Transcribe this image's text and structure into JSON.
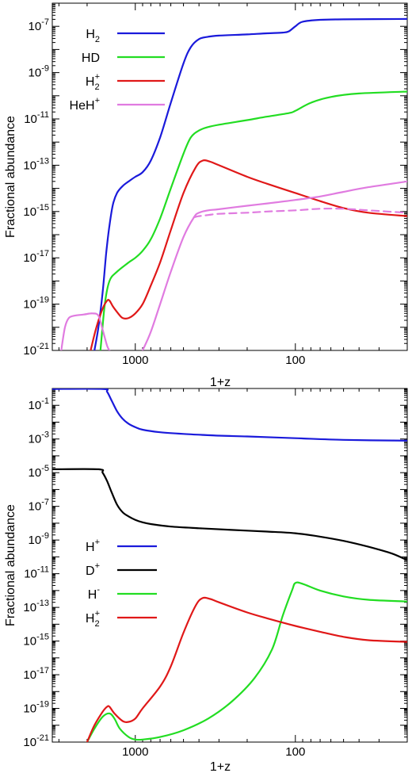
{
  "chart_data": [
    {
      "type": "line",
      "xlabel": "1+z",
      "ylabel": "Fractional abundance",
      "x_scale": "log",
      "x_reversed": true,
      "y_scale": "log",
      "xlim": [
        3300,
        20
      ],
      "ylim_exp": [
        -21,
        -6
      ],
      "x_ticks": [
        {
          "value": 1000,
          "label": "1000"
        },
        {
          "value": 100,
          "label": "100"
        }
      ],
      "y_ticks": [
        -7,
        -9,
        -11,
        -13,
        -15,
        -17,
        -19,
        -21
      ],
      "legend_position": "top-left",
      "series": [
        {
          "name": "H2",
          "label_main": "H",
          "label_sub": "2",
          "label_sup": "",
          "color": "#1a1adb",
          "dashed": false,
          "points": [
            [
              1800,
              -21
            ],
            [
              1700,
              -20
            ],
            [
              1600,
              -18.5
            ],
            [
              1520,
              -16.8
            ],
            [
              1450,
              -15.6
            ],
            [
              1380,
              -14.7
            ],
            [
              1300,
              -14.2
            ],
            [
              1200,
              -13.9
            ],
            [
              1100,
              -13.7
            ],
            [
              1000,
              -13.5
            ],
            [
              900,
              -13.3
            ],
            [
              800,
              -12.8
            ],
            [
              700,
              -11.8
            ],
            [
              600,
              -10.3
            ],
            [
              500,
              -8.6
            ],
            [
              450,
              -7.9
            ],
            [
              400,
              -7.55
            ],
            [
              350,
              -7.45
            ],
            [
              300,
              -7.4
            ],
            [
              200,
              -7.35
            ],
            [
              150,
              -7.3
            ],
            [
              120,
              -7.27
            ],
            [
              110,
              -7.22
            ],
            [
              100,
              -7.0
            ],
            [
              90,
              -6.8
            ],
            [
              70,
              -6.72
            ],
            [
              50,
              -6.7
            ],
            [
              20,
              -6.68
            ]
          ]
        },
        {
          "name": "HD",
          "label_main": "HD",
          "label_sub": "",
          "label_sup": "",
          "color": "#22dd22",
          "dashed": false,
          "points": [
            [
              1650,
              -21
            ],
            [
              1550,
              -19
            ],
            [
              1450,
              -18.0
            ],
            [
              1300,
              -17.6
            ],
            [
              1100,
              -17.2
            ],
            [
              1000,
              -17.0
            ],
            [
              900,
              -16.7
            ],
            [
              800,
              -16.2
            ],
            [
              700,
              -15.3
            ],
            [
              600,
              -14.0
            ],
            [
              500,
              -12.5
            ],
            [
              450,
              -11.8
            ],
            [
              400,
              -11.5
            ],
            [
              350,
              -11.35
            ],
            [
              300,
              -11.25
            ],
            [
              200,
              -11.05
            ],
            [
              150,
              -10.9
            ],
            [
              110,
              -10.75
            ],
            [
              100,
              -10.65
            ],
            [
              80,
              -10.3
            ],
            [
              60,
              -10.05
            ],
            [
              40,
              -9.9
            ],
            [
              20,
              -9.82
            ]
          ]
        },
        {
          "name": "H2+",
          "label_main": "H",
          "label_sub": "2",
          "label_sup": "+",
          "color": "#e01818",
          "dashed": false,
          "points": [
            [
              1900,
              -21
            ],
            [
              1750,
              -20
            ],
            [
              1600,
              -19.2
            ],
            [
              1500,
              -18.85
            ],
            [
              1450,
              -18.85
            ],
            [
              1380,
              -19.1
            ],
            [
              1280,
              -19.4
            ],
            [
              1200,
              -19.6
            ],
            [
              1100,
              -19.6
            ],
            [
              1000,
              -19.4
            ],
            [
              900,
              -19.0
            ],
            [
              800,
              -18.2
            ],
            [
              700,
              -17.2
            ],
            [
              600,
              -15.8
            ],
            [
              500,
              -14.2
            ],
            [
              420,
              -13.1
            ],
            [
              380,
              -12.8
            ],
            [
              340,
              -12.85
            ],
            [
              300,
              -13.0
            ],
            [
              200,
              -13.5
            ],
            [
              150,
              -13.8
            ],
            [
              100,
              -14.2
            ],
            [
              70,
              -14.55
            ],
            [
              50,
              -14.85
            ],
            [
              35,
              -15.05
            ],
            [
              20,
              -15.2
            ]
          ]
        },
        {
          "name": "HeH+",
          "label_main": "HeH",
          "label_sub": "",
          "label_sup": "+",
          "color": "#e07be0",
          "dashed": false,
          "points": [
            [
              2900,
              -21
            ],
            [
              2750,
              -20
            ],
            [
              2600,
              -19.6
            ],
            [
              2400,
              -19.5
            ],
            [
              2100,
              -19.45
            ],
            [
              1850,
              -19.4
            ],
            [
              1700,
              -19.5
            ],
            [
              1600,
              -20.1
            ],
            [
              1500,
              -20.8
            ],
            [
              1450,
              -21
            ]
          ]
        },
        {
          "name": "HeH+ (2)",
          "label_main": "",
          "label_sub": "",
          "label_sup": "",
          "color": "#e07be0",
          "dashed": false,
          "points": [
            [
              900,
              -21
            ],
            [
              800,
              -20.2
            ],
            [
              700,
              -19.0
            ],
            [
              600,
              -17.6
            ],
            [
              500,
              -16.1
            ],
            [
              430,
              -15.25
            ],
            [
              400,
              -15.05
            ],
            [
              350,
              -14.95
            ],
            [
              300,
              -14.9
            ],
            [
              200,
              -14.75
            ],
            [
              150,
              -14.65
            ],
            [
              100,
              -14.5
            ],
            [
              70,
              -14.35
            ],
            [
              50,
              -14.15
            ],
            [
              35,
              -13.95
            ],
            [
              20,
              -13.7
            ]
          ]
        },
        {
          "name": "HeH+ (dashed)",
          "label_main": "",
          "label_sub": "",
          "label_sup": "",
          "color": "#e07be0",
          "dashed": true,
          "points": [
            [
              430,
              -15.25
            ],
            [
              400,
              -15.2
            ],
            [
              350,
              -15.15
            ],
            [
              300,
              -15.1
            ],
            [
              200,
              -15.05
            ],
            [
              150,
              -15.0
            ],
            [
              100,
              -14.95
            ],
            [
              70,
              -14.88
            ],
            [
              50,
              -14.88
            ],
            [
              35,
              -14.95
            ],
            [
              20,
              -15.05
            ]
          ]
        }
      ]
    },
    {
      "type": "line",
      "xlabel": "1+z",
      "ylabel": "Fractional abundance",
      "x_scale": "log",
      "x_reversed": true,
      "y_scale": "log",
      "xlim": [
        3300,
        20
      ],
      "ylim_exp": [
        -21,
        0
      ],
      "x_ticks": [
        {
          "value": 1000,
          "label": "1000"
        },
        {
          "value": 100,
          "label": "100"
        }
      ],
      "y_ticks": [
        -1,
        -3,
        -5,
        -7,
        -9,
        -11,
        -13,
        -15,
        -17,
        -19,
        -21
      ],
      "legend_position": "middle-left",
      "series": [
        {
          "name": "H+",
          "label_main": "H",
          "label_sub": "",
          "label_sup": "+",
          "color": "#1a1adb",
          "dashed": false,
          "points": [
            [
              3300,
              -0.03
            ],
            [
              1600,
              -0.03
            ],
            [
              1500,
              -0.2
            ],
            [
              1400,
              -0.75
            ],
            [
              1300,
              -1.35
            ],
            [
              1200,
              -1.8
            ],
            [
              1100,
              -2.1
            ],
            [
              1000,
              -2.3
            ],
            [
              900,
              -2.45
            ],
            [
              700,
              -2.6
            ],
            [
              500,
              -2.7
            ],
            [
              300,
              -2.8
            ],
            [
              200,
              -2.85
            ],
            [
              100,
              -2.95
            ],
            [
              50,
              -3.05
            ],
            [
              20,
              -3.1
            ]
          ]
        },
        {
          "name": "D+",
          "label_main": "D",
          "label_sub": "",
          "label_sup": "+",
          "color": "#000000",
          "dashed": false,
          "points": [
            [
              3300,
              -4.8
            ],
            [
              1700,
              -4.8
            ],
            [
              1600,
              -5.0
            ],
            [
              1500,
              -5.5
            ],
            [
              1400,
              -6.2
            ],
            [
              1300,
              -6.9
            ],
            [
              1200,
              -7.35
            ],
            [
              1100,
              -7.6
            ],
            [
              1000,
              -7.8
            ],
            [
              900,
              -7.95
            ],
            [
              800,
              -8.05
            ],
            [
              600,
              -8.2
            ],
            [
              400,
              -8.3
            ],
            [
              250,
              -8.4
            ],
            [
              150,
              -8.5
            ],
            [
              100,
              -8.6
            ],
            [
              70,
              -8.8
            ],
            [
              50,
              -9.05
            ],
            [
              35,
              -9.4
            ],
            [
              25,
              -9.8
            ],
            [
              20,
              -10.2
            ]
          ]
        },
        {
          "name": "H-",
          "label_main": "H",
          "label_sub": "",
          "label_sup": "-",
          "color": "#22dd22",
          "dashed": false,
          "points": [
            [
              2000,
              -21
            ],
            [
              1800,
              -20.2
            ],
            [
              1600,
              -19.5
            ],
            [
              1450,
              -19.3
            ],
            [
              1350,
              -19.6
            ],
            [
              1250,
              -20.2
            ],
            [
              1100,
              -20.7
            ],
            [
              1000,
              -20.85
            ],
            [
              900,
              -20.85
            ],
            [
              700,
              -20.7
            ],
            [
              500,
              -20.3
            ],
            [
              350,
              -19.6
            ],
            [
              250,
              -18.6
            ],
            [
              180,
              -17.2
            ],
            [
              140,
              -15.5
            ],
            [
              120,
              -13.5
            ],
            [
              105,
              -12.0
            ],
            [
              100,
              -11.55
            ],
            [
              90,
              -11.6
            ],
            [
              70,
              -12.0
            ],
            [
              50,
              -12.35
            ],
            [
              35,
              -12.55
            ],
            [
              20,
              -12.65
            ]
          ]
        },
        {
          "name": "H2+",
          "label_main": "H",
          "label_sub": "2",
          "label_sup": "+",
          "color": "#e01818",
          "dashed": false,
          "points": [
            [
              2000,
              -21
            ],
            [
              1800,
              -20
            ],
            [
              1600,
              -19.2
            ],
            [
              1500,
              -18.9
            ],
            [
              1450,
              -18.9
            ],
            [
              1350,
              -19.3
            ],
            [
              1200,
              -19.75
            ],
            [
              1100,
              -19.8
            ],
            [
              1000,
              -19.6
            ],
            [
              900,
              -19.0
            ],
            [
              700,
              -17.7
            ],
            [
              600,
              -16.5
            ],
            [
              500,
              -14.5
            ],
            [
              420,
              -12.9
            ],
            [
              380,
              -12.45
            ],
            [
              340,
              -12.5
            ],
            [
              300,
              -12.7
            ],
            [
              200,
              -13.3
            ],
            [
              150,
              -13.65
            ],
            [
              100,
              -14.1
            ],
            [
              70,
              -14.45
            ],
            [
              50,
              -14.75
            ],
            [
              35,
              -14.95
            ],
            [
              20,
              -15.05
            ]
          ]
        }
      ]
    }
  ]
}
